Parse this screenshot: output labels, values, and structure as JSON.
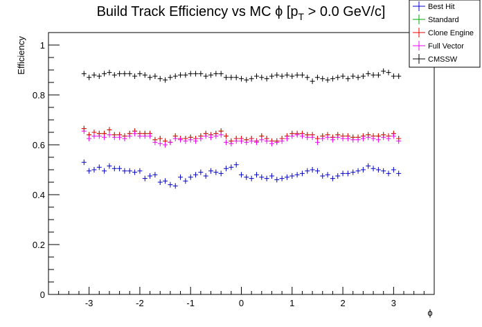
{
  "chart_data": {
    "type": "scatter",
    "title": {
      "prefix": "Build Track Efficiency vs MC ",
      "phi": "ϕ",
      "bracket": " [p",
      "subscript": "T",
      "suffix": " > 0.0 GeV/c]"
    },
    "xlabel": "ϕ",
    "ylabel": "Efficiency",
    "xlim": [
      -3.8,
      3.8
    ],
    "ylim": [
      0,
      1.05
    ],
    "x_ticks": [
      -3,
      -2,
      -1,
      0,
      1,
      2,
      3
    ],
    "x_tick_labels": [
      "-3",
      "-2",
      "-1",
      "0",
      "1",
      "2",
      "3"
    ],
    "y_ticks": [
      0,
      0.2,
      0.4,
      0.6,
      0.8,
      1
    ],
    "y_tick_labels": [
      "0",
      "0.2",
      "0.4",
      "0.6",
      "0.8",
      "1"
    ],
    "legend_position": "top-right",
    "x": [
      -3.1,
      -3.0,
      -2.9,
      -2.8,
      -2.7,
      -2.6,
      -2.5,
      -2.4,
      -2.3,
      -2.2,
      -2.1,
      -2.0,
      -1.9,
      -1.8,
      -1.7,
      -1.6,
      -1.5,
      -1.4,
      -1.3,
      -1.2,
      -1.1,
      -1.0,
      -0.9,
      -0.8,
      -0.7,
      -0.6,
      -0.5,
      -0.4,
      -0.3,
      -0.2,
      -0.1,
      0.0,
      0.1,
      0.2,
      0.3,
      0.4,
      0.5,
      0.6,
      0.7,
      0.8,
      0.9,
      1.0,
      1.1,
      1.2,
      1.3,
      1.4,
      1.5,
      1.6,
      1.7,
      1.8,
      1.9,
      2.0,
      2.1,
      2.2,
      2.3,
      2.4,
      2.5,
      2.6,
      2.7,
      2.8,
      2.9,
      3.0,
      3.1
    ],
    "series": [
      {
        "name": "Best Hit",
        "color": "#0000cc",
        "values": [
          0.53,
          0.495,
          0.5,
          0.51,
          0.495,
          0.515,
          0.505,
          0.505,
          0.495,
          0.495,
          0.49,
          0.495,
          0.465,
          0.475,
          0.48,
          0.45,
          0.455,
          0.44,
          0.435,
          0.47,
          0.455,
          0.47,
          0.48,
          0.49,
          0.475,
          0.495,
          0.49,
          0.485,
          0.505,
          0.51,
          0.52,
          0.48,
          0.47,
          0.465,
          0.48,
          0.47,
          0.465,
          0.475,
          0.46,
          0.465,
          0.47,
          0.475,
          0.48,
          0.485,
          0.495,
          0.5,
          0.495,
          0.475,
          0.48,
          0.465,
          0.475,
          0.485,
          0.485,
          0.49,
          0.495,
          0.5,
          0.515,
          0.505,
          0.5,
          0.495,
          0.485,
          0.5,
          0.485
        ]
      },
      {
        "name": "Standard",
        "color": "#00aa00",
        "values": [
          0.665,
          0.64,
          0.65,
          0.645,
          0.645,
          0.66,
          0.64,
          0.64,
          0.635,
          0.645,
          0.655,
          0.645,
          0.645,
          0.645,
          0.62,
          0.625,
          0.615,
          0.61,
          0.635,
          0.625,
          0.625,
          0.63,
          0.625,
          0.635,
          0.645,
          0.64,
          0.645,
          0.655,
          0.635,
          0.615,
          0.625,
          0.625,
          0.62,
          0.625,
          0.615,
          0.635,
          0.625,
          0.615,
          0.615,
          0.625,
          0.635,
          0.645,
          0.645,
          0.645,
          0.64,
          0.64,
          0.625,
          0.635,
          0.64,
          0.63,
          0.64,
          0.635,
          0.635,
          0.63,
          0.63,
          0.635,
          0.64,
          0.635,
          0.635,
          0.64,
          0.635,
          0.645,
          0.625
        ]
      },
      {
        "name": "Clone Engine",
        "color": "#ee0000",
        "values": [
          0.665,
          0.64,
          0.65,
          0.645,
          0.645,
          0.66,
          0.64,
          0.64,
          0.635,
          0.645,
          0.655,
          0.645,
          0.645,
          0.645,
          0.62,
          0.625,
          0.615,
          0.61,
          0.635,
          0.625,
          0.625,
          0.63,
          0.625,
          0.635,
          0.645,
          0.64,
          0.645,
          0.655,
          0.635,
          0.615,
          0.625,
          0.625,
          0.62,
          0.625,
          0.615,
          0.635,
          0.625,
          0.615,
          0.615,
          0.625,
          0.635,
          0.645,
          0.645,
          0.645,
          0.64,
          0.64,
          0.625,
          0.635,
          0.64,
          0.63,
          0.64,
          0.635,
          0.635,
          0.63,
          0.63,
          0.635,
          0.64,
          0.635,
          0.635,
          0.64,
          0.635,
          0.645,
          0.625
        ]
      },
      {
        "name": "Full Vector",
        "color": "#ee00ee",
        "values": [
          0.655,
          0.625,
          0.635,
          0.635,
          0.63,
          0.64,
          0.63,
          0.63,
          0.625,
          0.635,
          0.645,
          0.635,
          0.635,
          0.635,
          0.61,
          0.605,
          0.6,
          0.61,
          0.625,
          0.62,
          0.615,
          0.62,
          0.615,
          0.625,
          0.635,
          0.63,
          0.635,
          0.64,
          0.61,
          0.605,
          0.615,
          0.615,
          0.61,
          0.615,
          0.61,
          0.62,
          0.615,
          0.605,
          0.61,
          0.615,
          0.625,
          0.635,
          0.64,
          0.635,
          0.63,
          0.63,
          0.61,
          0.625,
          0.63,
          0.62,
          0.63,
          0.625,
          0.625,
          0.62,
          0.62,
          0.625,
          0.63,
          0.625,
          0.62,
          0.63,
          0.625,
          0.635,
          0.615
        ]
      },
      {
        "name": "CMSSW",
        "color": "#000000",
        "values": [
          0.885,
          0.87,
          0.88,
          0.875,
          0.885,
          0.89,
          0.88,
          0.885,
          0.885,
          0.885,
          0.875,
          0.885,
          0.88,
          0.87,
          0.875,
          0.865,
          0.86,
          0.87,
          0.875,
          0.88,
          0.88,
          0.885,
          0.885,
          0.885,
          0.875,
          0.88,
          0.885,
          0.885,
          0.87,
          0.87,
          0.87,
          0.865,
          0.86,
          0.865,
          0.875,
          0.87,
          0.865,
          0.875,
          0.88,
          0.875,
          0.88,
          0.875,
          0.88,
          0.88,
          0.87,
          0.855,
          0.87,
          0.865,
          0.86,
          0.865,
          0.87,
          0.875,
          0.865,
          0.875,
          0.87,
          0.875,
          0.885,
          0.88,
          0.88,
          0.895,
          0.89,
          0.875,
          0.875
        ]
      }
    ]
  }
}
